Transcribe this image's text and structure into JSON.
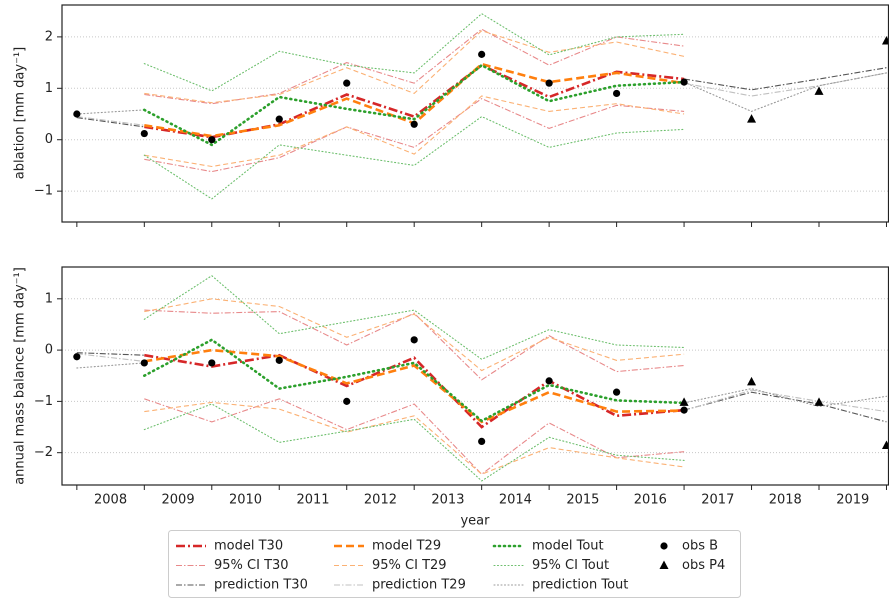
{
  "legend": [
    "model T30",
    "95% CI T30",
    "prediction T30",
    "model T29",
    "95% CI T29",
    "prediction T29",
    "model Tout",
    "95% CI Tout",
    "prediction Tout",
    "obs B",
    "obs P4"
  ],
  "xlabel": "year",
  "chart_data": [
    {
      "type": "line",
      "ylabel": "ablation [mm day⁻¹]",
      "x": [
        2008,
        2009,
        2010,
        2011,
        2012,
        2013,
        2014,
        2015,
        2016,
        2017,
        2018,
        2019,
        2020
      ],
      "xlim": [
        2007.78,
        2020.03
      ],
      "xtick_marks": [
        2008,
        2009,
        2010,
        2011,
        2012,
        2013,
        2014,
        2015,
        2016,
        2017,
        2018,
        2019,
        2020
      ],
      "ylim": [
        -1.6,
        2.62
      ],
      "yticks": [
        {
          "value": -1,
          "label": "−1"
        },
        0,
        1,
        2
      ],
      "grid": true,
      "series": [
        {
          "kind": "model",
          "color": "#d62728",
          "dash": "dashdot",
          "values": [
            null,
            0.25,
            0.05,
            0.3,
            0.88,
            0.45,
            1.45,
            0.83,
            1.32,
            1.18,
            null,
            null,
            null
          ]
        },
        {
          "kind": "ci",
          "color": "#e8898a",
          "dash": "dashdot",
          "upper": [
            null,
            0.88,
            0.7,
            0.9,
            1.5,
            1.1,
            2.15,
            1.45,
            2.0,
            1.82,
            null,
            null,
            null
          ],
          "lower": [
            null,
            -0.38,
            -0.62,
            -0.35,
            0.25,
            -0.15,
            0.8,
            0.22,
            0.67,
            0.55,
            null,
            null,
            null
          ]
        },
        {
          "kind": "prediction",
          "color": "#555555",
          "dash": "dashdot",
          "values": [
            0.43,
            0.25,
            null,
            null,
            null,
            null,
            null,
            null,
            null,
            1.18,
            0.97,
            1.18,
            1.4
          ]
        },
        {
          "kind": "model",
          "color": "#ff7f0e",
          "dash": "dashed",
          "values": [
            null,
            0.28,
            0.07,
            0.28,
            0.8,
            0.32,
            1.47,
            1.12,
            1.3,
            1.1,
            null,
            null,
            null
          ]
        },
        {
          "kind": "ci",
          "color": "#fbb174",
          "dash": "dashed",
          "upper": [
            null,
            0.9,
            0.72,
            0.88,
            1.4,
            0.9,
            2.12,
            1.7,
            1.9,
            1.62,
            null,
            null,
            null
          ],
          "lower": [
            null,
            -0.3,
            -0.52,
            -0.3,
            0.25,
            -0.28,
            0.85,
            0.55,
            0.7,
            0.5,
            null,
            null,
            null
          ]
        },
        {
          "kind": "prediction",
          "color": "#c0c0c0",
          "dash": "dashdot",
          "values": [
            0.45,
            0.28,
            null,
            null,
            null,
            null,
            null,
            null,
            null,
            1.1,
            0.85,
            1.05,
            1.3
          ]
        },
        {
          "kind": "model",
          "color": "#2ca02c",
          "dash": "dotted",
          "values": [
            null,
            0.58,
            -0.1,
            0.83,
            0.6,
            0.4,
            1.45,
            0.75,
            1.05,
            1.12,
            null,
            null,
            null
          ]
        },
        {
          "kind": "ci",
          "color": "#6dbf6d",
          "dash": "dotted",
          "upper": [
            null,
            1.48,
            0.95,
            1.72,
            1.45,
            1.3,
            2.45,
            1.65,
            2.0,
            2.05,
            null,
            null,
            null
          ],
          "lower": [
            null,
            -0.3,
            -1.15,
            -0.1,
            -0.3,
            -0.5,
            0.45,
            -0.15,
            0.13,
            0.2,
            null,
            null,
            null
          ]
        },
        {
          "kind": "prediction",
          "color": "#999999",
          "dash": "dotted",
          "values": [
            0.5,
            0.58,
            null,
            null,
            null,
            null,
            null,
            null,
            null,
            1.12,
            0.55,
            1.05,
            1.3
          ]
        },
        {
          "kind": "obs",
          "color": "#000000",
          "marker": "circle",
          "values": [
            0.5,
            0.12,
            0.0,
            0.4,
            1.1,
            0.3,
            1.66,
            1.1,
            0.9,
            1.12,
            null,
            null,
            null
          ]
        },
        {
          "kind": "obs",
          "color": "#000000",
          "marker": "triangle",
          "values": [
            null,
            null,
            null,
            null,
            null,
            null,
            null,
            null,
            null,
            null,
            0.4,
            0.94,
            1.92
          ]
        }
      ]
    },
    {
      "type": "line",
      "ylabel": "annual mass balance [mm day⁻¹]",
      "x": [
        2008,
        2009,
        2010,
        2011,
        2012,
        2013,
        2014,
        2015,
        2016,
        2017,
        2018,
        2019,
        2020
      ],
      "xlim": [
        2007.78,
        2020.03
      ],
      "xtick_marks": [
        2008,
        2009,
        2010,
        2011,
        2012,
        2013,
        2014,
        2015,
        2016,
        2017,
        2018,
        2019,
        2020
      ],
      "xticks": [
        {
          "value": 2008.5,
          "label": "2008"
        },
        {
          "value": 2009.5,
          "label": "2009"
        },
        {
          "value": 2010.5,
          "label": "2010"
        },
        {
          "value": 2011.5,
          "label": "2011"
        },
        {
          "value": 2012.5,
          "label": "2012"
        },
        {
          "value": 2013.5,
          "label": "2013"
        },
        {
          "value": 2014.5,
          "label": "2014"
        },
        {
          "value": 2015.5,
          "label": "2015"
        },
        {
          "value": 2016.5,
          "label": "2016"
        },
        {
          "value": 2017.5,
          "label": "2017"
        },
        {
          "value": 2018.5,
          "label": "2018"
        },
        {
          "value": 2019.5,
          "label": "2019"
        }
      ],
      "ylim": [
        -2.63,
        1.62
      ],
      "yticks": [
        {
          "value": -2,
          "label": "−2"
        },
        {
          "value": -1,
          "label": "−1"
        },
        0,
        1
      ],
      "grid": true,
      "series": [
        {
          "kind": "model",
          "color": "#d62728",
          "dash": "dashdot",
          "values": [
            null,
            -0.1,
            -0.32,
            -0.1,
            -0.7,
            -0.15,
            -1.5,
            -0.6,
            -1.28,
            -1.17,
            null,
            null,
            null
          ]
        },
        {
          "kind": "ci",
          "color": "#e8898a",
          "dash": "dashdot",
          "upper": [
            null,
            0.78,
            0.72,
            0.75,
            0.1,
            0.72,
            -0.58,
            0.28,
            -0.42,
            -0.3,
            null,
            null,
            null
          ],
          "lower": [
            null,
            -0.95,
            -1.4,
            -0.95,
            -1.55,
            -1.05,
            -2.42,
            -1.42,
            -2.1,
            -1.98,
            null,
            null,
            null
          ]
        },
        {
          "kind": "prediction",
          "color": "#555555",
          "dash": "dashdot",
          "values": [
            -0.05,
            -0.1,
            null,
            null,
            null,
            null,
            null,
            null,
            null,
            -1.17,
            -0.82,
            -1.05,
            -1.4
          ]
        },
        {
          "kind": "model",
          "color": "#ff7f0e",
          "dash": "dashed",
          "values": [
            null,
            -0.22,
            0.0,
            -0.12,
            -0.65,
            -0.3,
            -1.4,
            -0.82,
            -1.2,
            -1.18,
            null,
            null,
            null
          ]
        },
        {
          "kind": "ci",
          "color": "#fbb174",
          "dash": "dashed",
          "upper": [
            null,
            0.75,
            1.0,
            0.85,
            0.25,
            0.7,
            -0.4,
            0.25,
            -0.2,
            -0.08,
            null,
            null,
            null
          ],
          "lower": [
            null,
            -1.2,
            -1.02,
            -1.15,
            -1.6,
            -1.28,
            -2.42,
            -1.9,
            -2.1,
            -2.28,
            null,
            null,
            null
          ]
        },
        {
          "kind": "prediction",
          "color": "#c0c0c0",
          "dash": "dashdot",
          "values": [
            -0.07,
            -0.22,
            null,
            null,
            null,
            null,
            null,
            null,
            null,
            -1.18,
            -0.78,
            -1.0,
            -1.2
          ]
        },
        {
          "kind": "model",
          "color": "#2ca02c",
          "dash": "dotted",
          "values": [
            null,
            -0.5,
            0.2,
            -0.75,
            -0.52,
            -0.25,
            -1.38,
            -0.68,
            -0.98,
            -1.03,
            null,
            null,
            null
          ]
        },
        {
          "kind": "ci",
          "color": "#6dbf6d",
          "dash": "dotted",
          "upper": [
            null,
            0.6,
            1.45,
            0.32,
            0.55,
            0.78,
            -0.18,
            0.4,
            0.1,
            0.05,
            null,
            null,
            null
          ],
          "lower": [
            null,
            -1.55,
            -1.05,
            -1.8,
            -1.58,
            -1.35,
            -2.55,
            -1.7,
            -2.05,
            -2.15,
            null,
            null,
            null
          ]
        },
        {
          "kind": "prediction",
          "color": "#999999",
          "dash": "dotted",
          "values": [
            -0.35,
            -0.25,
            null,
            null,
            null,
            null,
            null,
            null,
            null,
            -1.03,
            -0.75,
            -1.1,
            -0.9
          ]
        },
        {
          "kind": "obs",
          "color": "#000000",
          "marker": "circle",
          "values": [
            -0.13,
            -0.25,
            -0.25,
            -0.2,
            -1.0,
            0.2,
            -1.78,
            -0.6,
            -0.82,
            -1.17,
            null,
            null,
            null
          ]
        },
        {
          "kind": "obs",
          "color": "#000000",
          "marker": "triangle",
          "values": [
            null,
            null,
            null,
            null,
            null,
            null,
            null,
            null,
            null,
            -1.02,
            -0.62,
            -1.02,
            -1.86
          ]
        }
      ]
    }
  ]
}
